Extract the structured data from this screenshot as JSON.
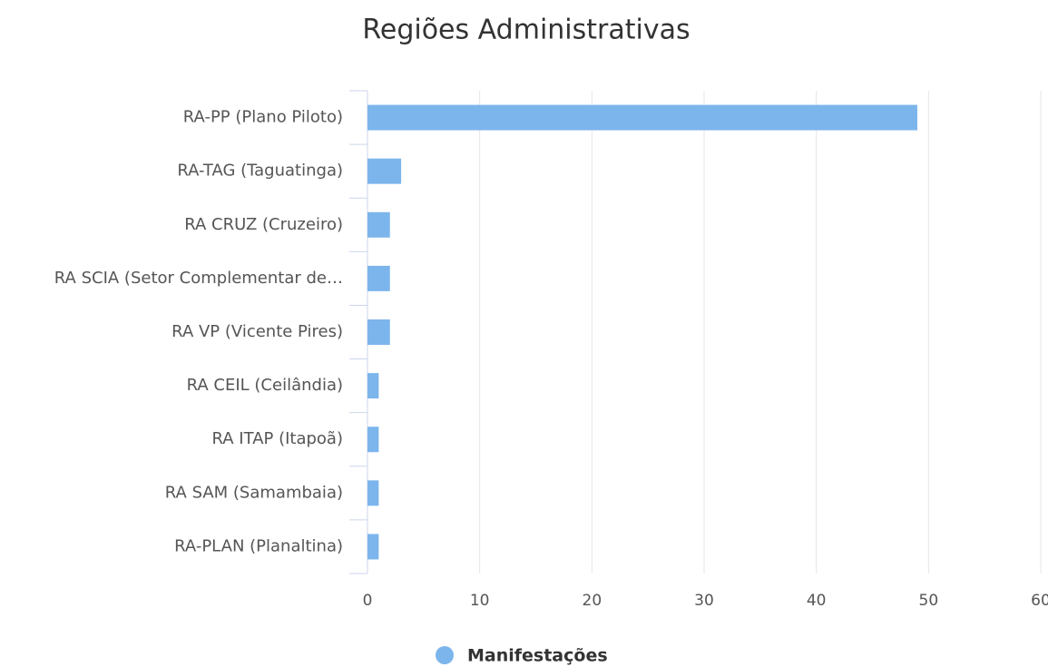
{
  "chart_data": {
    "type": "bar",
    "title": "Regiões Administrativas",
    "categories": [
      "RA-PP (Plano Piloto)",
      "RA-TAG (Taguatinga)",
      "RA CRUZ (Cruzeiro)",
      "RA SCIA (Setor Complementar de…",
      "RA VP (Vicente Pires)",
      "RA CEIL (Ceilândia)",
      "RA ITAP (Itapoã)",
      "RA SAM (Samambaia)",
      "RA-PLAN (Planaltina)"
    ],
    "series": [
      {
        "name": "Manifestações",
        "color": "#7cb5ec",
        "values": [
          49,
          3,
          2,
          2,
          2,
          1,
          1,
          1,
          1
        ]
      }
    ],
    "xlim": [
      0,
      60
    ],
    "xticks": [
      0,
      10,
      20,
      30,
      40,
      50,
      60
    ],
    "grid": true
  }
}
